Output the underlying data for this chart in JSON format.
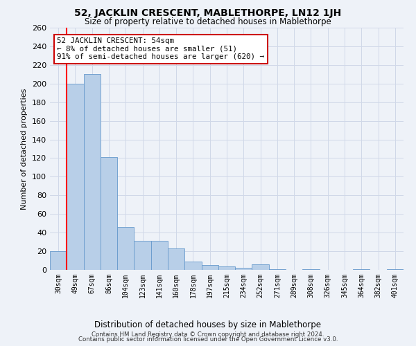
{
  "title": "52, JACKLIN CRESCENT, MABLETHORPE, LN12 1JH",
  "subtitle": "Size of property relative to detached houses in Mablethorpe",
  "xlabel": "Distribution of detached houses by size in Mablethorpe",
  "ylabel": "Number of detached properties",
  "bar_color": "#b8cfe8",
  "bar_edge_color": "#6699cc",
  "bar_heights": [
    20,
    200,
    210,
    121,
    46,
    31,
    31,
    23,
    9,
    5,
    4,
    2,
    6,
    1,
    0,
    1,
    0,
    0,
    1,
    0,
    1
  ],
  "bin_labels": [
    "30sqm",
    "49sqm",
    "67sqm",
    "86sqm",
    "104sqm",
    "123sqm",
    "141sqm",
    "160sqm",
    "178sqm",
    "197sqm",
    "215sqm",
    "234sqm",
    "252sqm",
    "271sqm",
    "289sqm",
    "308sqm",
    "326sqm",
    "345sqm",
    "364sqm",
    "382sqm",
    "401sqm"
  ],
  "red_line_x": 0.5,
  "annotation_text": "52 JACKLIN CRESCENT: 54sqm\n← 8% of detached houses are smaller (51)\n91% of semi-detached houses are larger (620) →",
  "annotation_box_color": "#ffffff",
  "annotation_box_edge": "#cc0000",
  "ylim": [
    0,
    260
  ],
  "yticks": [
    0,
    20,
    40,
    60,
    80,
    100,
    120,
    140,
    160,
    180,
    200,
    220,
    240,
    260
  ],
  "grid_color": "#d0d8e8",
  "background_color": "#eef2f8",
  "footer_line1": "Contains HM Land Registry data © Crown copyright and database right 2024.",
  "footer_line2": "Contains public sector information licensed under the Open Government Licence v3.0."
}
